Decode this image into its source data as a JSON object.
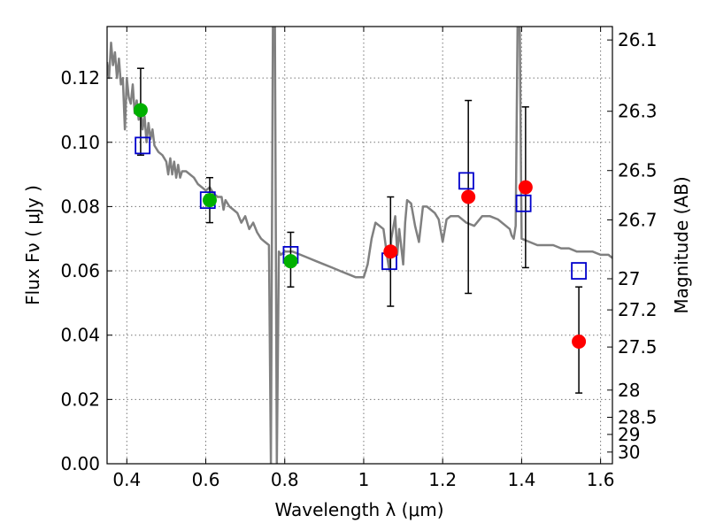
{
  "chart_data": {
    "type": "scatter",
    "xlabel": "Wavelength  λ (μm)",
    "ylabel": "Flux  Fν  ( μJy )",
    "y2label": "Magnitude (AB)",
    "xlim": [
      0.35,
      1.63
    ],
    "ylim": [
      0.0,
      0.136
    ],
    "grid": true,
    "xticks": [
      0.4,
      0.6,
      0.8,
      1.0,
      1.2,
      1.4,
      1.6
    ],
    "xtick_labels": [
      "0.4",
      "0.6",
      "0.8",
      "1",
      "1.2",
      "1.4",
      "1.6"
    ],
    "yticks": [
      0.0,
      0.02,
      0.04,
      0.06,
      0.08,
      0.1,
      0.12
    ],
    "ytick_labels": [
      "0.00",
      "0.02",
      "0.04",
      "0.06",
      "0.08",
      "0.10",
      "0.12"
    ],
    "mag_ticks": [
      26.1,
      26.3,
      26.5,
      26.7,
      27,
      27.2,
      27.5,
      28,
      28.5,
      29,
      30
    ],
    "mag_tick_labels": [
      "26.1",
      "26.3",
      "26.5",
      "26.7",
      "27",
      "27.2",
      "27.5",
      "28",
      "28.5",
      "29",
      "30"
    ],
    "colors": {
      "model": "#808080",
      "detected": "#00b000",
      "upper": "#ff0000",
      "model_flux": "#0000cc",
      "errorbar": "#000000",
      "grid": "#777777"
    },
    "series": [
      {
        "name": "model_sed",
        "style": "line",
        "x": [
          0.35,
          0.355,
          0.36,
          0.365,
          0.37,
          0.375,
          0.38,
          0.385,
          0.39,
          0.395,
          0.4,
          0.405,
          0.41,
          0.415,
          0.42,
          0.425,
          0.43,
          0.435,
          0.44,
          0.445,
          0.45,
          0.455,
          0.46,
          0.465,
          0.47,
          0.48,
          0.49,
          0.5,
          0.505,
          0.51,
          0.515,
          0.52,
          0.525,
          0.53,
          0.535,
          0.54,
          0.55,
          0.56,
          0.57,
          0.58,
          0.59,
          0.6,
          0.61,
          0.62,
          0.63,
          0.64,
          0.645,
          0.65,
          0.66,
          0.67,
          0.68,
          0.69,
          0.7,
          0.71,
          0.72,
          0.73,
          0.74,
          0.75,
          0.76,
          0.765,
          0.77,
          0.775,
          0.78,
          0.785,
          0.79,
          0.8,
          0.82,
          0.84,
          0.86,
          0.88,
          0.9,
          0.92,
          0.94,
          0.96,
          0.98,
          1.0,
          1.01,
          1.02,
          1.03,
          1.04,
          1.05,
          1.06,
          1.065,
          1.07,
          1.08,
          1.085,
          1.09,
          1.1,
          1.105,
          1.11,
          1.12,
          1.13,
          1.14,
          1.15,
          1.16,
          1.17,
          1.18,
          1.19,
          1.2,
          1.21,
          1.22,
          1.24,
          1.26,
          1.28,
          1.3,
          1.32,
          1.34,
          1.36,
          1.37,
          1.375,
          1.38,
          1.385,
          1.39,
          1.395,
          1.4,
          1.42,
          1.44,
          1.46,
          1.48,
          1.5,
          1.52,
          1.54,
          1.56,
          1.58,
          1.6,
          1.62,
          1.63
        ],
        "y": [
          0.125,
          0.12,
          0.131,
          0.124,
          0.128,
          0.12,
          0.126,
          0.118,
          0.12,
          0.104,
          0.12,
          0.114,
          0.112,
          0.118,
          0.109,
          0.113,
          0.107,
          0.112,
          0.104,
          0.108,
          0.1,
          0.106,
          0.101,
          0.104,
          0.099,
          0.097,
          0.096,
          0.094,
          0.09,
          0.095,
          0.09,
          0.094,
          0.089,
          0.093,
          0.089,
          0.091,
          0.091,
          0.09,
          0.089,
          0.087,
          0.086,
          0.085,
          0.086,
          0.084,
          0.083,
          0.083,
          0.079,
          0.082,
          0.08,
          0.079,
          0.078,
          0.075,
          0.077,
          0.073,
          0.075,
          0.072,
          0.07,
          0.069,
          0.068,
          0.0,
          0.138,
          0.138,
          0.0,
          0.066,
          0.065,
          0.066,
          0.066,
          0.065,
          0.064,
          0.063,
          0.062,
          0.061,
          0.06,
          0.059,
          0.058,
          0.058,
          0.062,
          0.07,
          0.075,
          0.074,
          0.073,
          0.064,
          0.06,
          0.07,
          0.077,
          0.065,
          0.073,
          0.062,
          0.075,
          0.082,
          0.081,
          0.074,
          0.069,
          0.08,
          0.08,
          0.079,
          0.078,
          0.076,
          0.069,
          0.076,
          0.077,
          0.077,
          0.075,
          0.074,
          0.077,
          0.077,
          0.076,
          0.074,
          0.073,
          0.071,
          0.07,
          0.074,
          0.138,
          0.138,
          0.07,
          0.069,
          0.068,
          0.068,
          0.068,
          0.067,
          0.067,
          0.066,
          0.066,
          0.066,
          0.065,
          0.065,
          0.064
        ]
      },
      {
        "name": "detections",
        "style": "circle",
        "color": "#00b000",
        "x": [
          0.435,
          0.61,
          0.815
        ],
        "y": [
          0.11,
          0.082,
          0.063
        ],
        "err_low": [
          0.096,
          0.075,
          0.055
        ],
        "err_high": [
          0.123,
          0.089,
          0.072
        ]
      },
      {
        "name": "low_snr_detections",
        "style": "circle",
        "color": "#ff0000",
        "x": [
          1.068,
          1.265,
          1.41,
          1.545
        ],
        "y": [
          0.066,
          0.083,
          0.086,
          0.038
        ],
        "err_low": [
          0.049,
          0.053,
          0.061,
          0.022
        ],
        "err_high": [
          0.083,
          0.113,
          0.111,
          0.055
        ]
      },
      {
        "name": "model_photometry",
        "style": "square",
        "color": "#0000cc",
        "x": [
          0.44,
          0.605,
          0.815,
          1.065,
          1.26,
          1.405,
          1.545
        ],
        "y": [
          0.099,
          0.082,
          0.065,
          0.063,
          0.088,
          0.081,
          0.06
        ]
      }
    ]
  }
}
